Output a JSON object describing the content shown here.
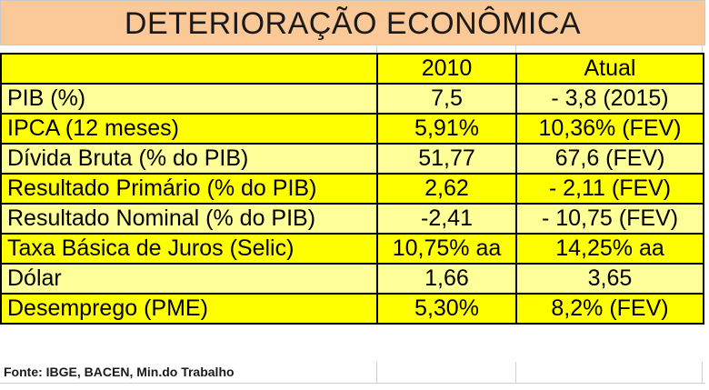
{
  "title": "DETERIORAÇÃO ECONÔMICA",
  "header": {
    "label": "",
    "col_2010": "2010",
    "col_atual": "Atual"
  },
  "rows": [
    {
      "label": "PIB (%)",
      "v2010": "7,5",
      "atual": "- 3,8 (2015)",
      "shade": "light"
    },
    {
      "label": "IPCA (12 meses)",
      "v2010": "5,91%",
      "atual": "10,36% (FEV)",
      "shade": "dark"
    },
    {
      "label": "Dívida Bruta (% do PIB)",
      "v2010": "51,77",
      "atual": "67,6 (FEV)",
      "shade": "light"
    },
    {
      "label": "Resultado Primário (% do PIB)",
      "v2010": "2,62",
      "atual": "- 2,11  (FEV)",
      "shade": "dark"
    },
    {
      "label": "Resultado Nominal (% do PIB)",
      "v2010": "-2,41",
      "atual": "- 10,75  (FEV)",
      "shade": "light"
    },
    {
      "label": "Taxa Básica de Juros (Selic)",
      "v2010": "10,75% aa",
      "atual": "14,25% aa",
      "shade": "dark"
    },
    {
      "label": "Dólar",
      "v2010": "1,66",
      "atual": "3,65",
      "shade": "light"
    },
    {
      "label": "Desemprego (PME)",
      "v2010": "5,30%",
      "atual": "8,2% (FEV)",
      "shade": "dark"
    }
  ],
  "source": "Fonte: IBGE, BACEN, Min.do Trabalho",
  "colors": {
    "title_bg": "#fbc997",
    "row_light": "#ffff99",
    "row_dark": "#ffff00",
    "border": "#000000"
  }
}
